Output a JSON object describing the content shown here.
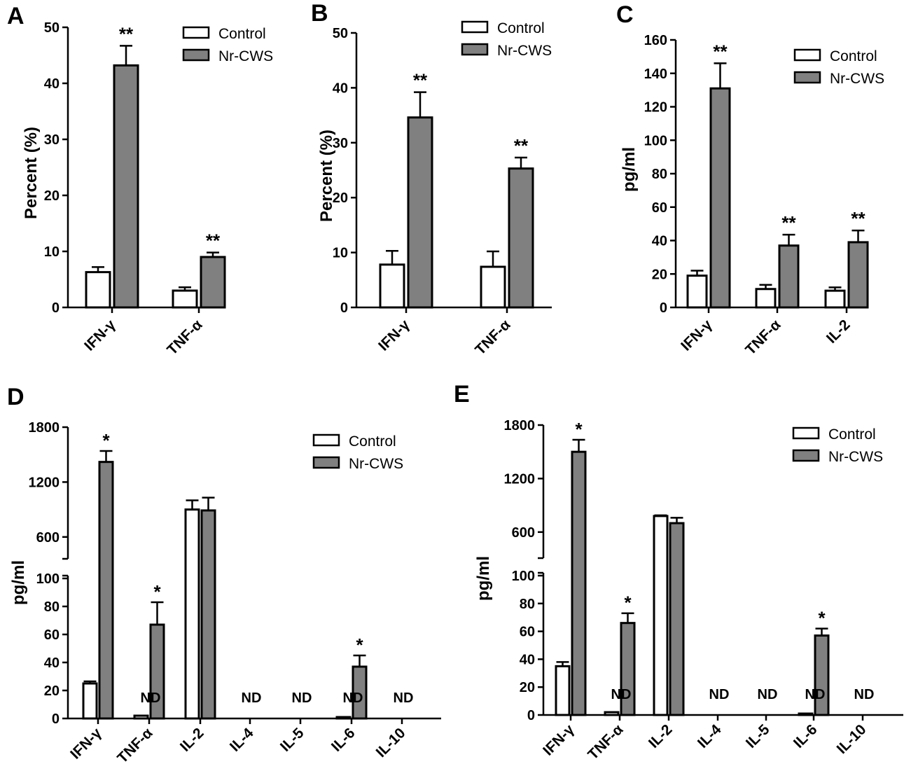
{
  "legend": {
    "control": "Control",
    "treatment": "Nr-CWS"
  },
  "colors": {
    "control": "#ffffff",
    "treatment": "#808080",
    "stroke": "#000000"
  },
  "chart_data": [
    {
      "panel": "A",
      "type": "bar",
      "broken_axis": false,
      "ylabel": "Percent (%)",
      "ylim": [
        0,
        50
      ],
      "yticks": [
        0,
        10,
        20,
        30,
        40,
        50
      ],
      "categories": [
        "IFN-γ",
        "TNF-α"
      ],
      "series": [
        {
          "name": "Control",
          "values": [
            6.3,
            3.0
          ],
          "errors": [
            0.9,
            0.6
          ]
        },
        {
          "name": "Nr-CWS",
          "values": [
            43.2,
            9.0
          ],
          "errors": [
            3.5,
            0.8
          ]
        }
      ],
      "annotations": [
        "**",
        "**"
      ],
      "legend_position": "top-right"
    },
    {
      "panel": "B",
      "type": "bar",
      "broken_axis": false,
      "ylabel": "Percent (%)",
      "ylim": [
        0,
        50
      ],
      "yticks": [
        0,
        10,
        20,
        30,
        40,
        50
      ],
      "categories": [
        "IFN-γ",
        "TNF-α"
      ],
      "series": [
        {
          "name": "Control",
          "values": [
            7.8,
            7.4
          ],
          "errors": [
            2.5,
            2.8
          ]
        },
        {
          "name": "Nr-CWS",
          "values": [
            34.6,
            25.3
          ],
          "errors": [
            4.6,
            2.0
          ]
        }
      ],
      "annotations": [
        "**",
        "**"
      ],
      "legend_position": "top-right"
    },
    {
      "panel": "C",
      "type": "bar",
      "broken_axis": false,
      "ylabel": "pg/ml",
      "ylim": [
        0,
        160
      ],
      "yticks": [
        0,
        20,
        40,
        60,
        80,
        100,
        120,
        140,
        160
      ],
      "categories": [
        "IFN-γ",
        "TNF-α",
        "IL-2"
      ],
      "series": [
        {
          "name": "Control",
          "values": [
            19,
            11,
            10
          ],
          "errors": [
            3,
            2.5,
            2
          ]
        },
        {
          "name": "Nr-CWS",
          "values": [
            131,
            37,
            39
          ],
          "errors": [
            15,
            6.5,
            7
          ]
        }
      ],
      "annotations": [
        "**",
        "**",
        "**"
      ],
      "legend_position": "top-right"
    },
    {
      "panel": "D",
      "type": "bar",
      "broken_axis": true,
      "ylabel": "pg/ml",
      "lower_ylim": [
        0,
        100
      ],
      "lower_yticks": [
        0,
        20,
        40,
        60,
        80,
        100
      ],
      "upper_ylim": [
        300,
        1800
      ],
      "upper_yticks": [
        600,
        1200,
        1800
      ],
      "categories": [
        "IFN-γ",
        "TNF-α",
        "IL-2",
        "IL-4",
        "IL-5",
        "IL-6",
        "IL-10"
      ],
      "series": [
        {
          "name": "Control",
          "values": [
            25,
            2,
            900,
            0,
            0,
            1,
            0
          ],
          "errors": [
            1.5,
            0,
            100,
            0,
            0,
            0,
            0
          ]
        },
        {
          "name": "Nr-CWS",
          "values": [
            1420,
            67,
            890,
            0,
            0,
            37,
            0
          ],
          "errors": [
            120,
            16,
            140,
            0,
            0,
            8,
            0
          ]
        }
      ],
      "annotations": [
        "*",
        "*",
        "",
        "",
        "",
        "*",
        ""
      ],
      "nd_labels": [
        "",
        "ND",
        "",
        "ND",
        "ND",
        "ND",
        "ND"
      ],
      "legend_position": "top-right"
    },
    {
      "panel": "E",
      "type": "bar",
      "broken_axis": true,
      "ylabel": "pg/ml",
      "lower_ylim": [
        0,
        100
      ],
      "lower_yticks": [
        0,
        20,
        40,
        60,
        80,
        100
      ],
      "upper_ylim": [
        300,
        1800
      ],
      "upper_yticks": [
        600,
        1200,
        1800
      ],
      "categories": [
        "IFN-γ",
        "TNF-α",
        "IL-2",
        "IL-4",
        "IL-5",
        "IL-6",
        "IL-10"
      ],
      "series": [
        {
          "name": "Control",
          "values": [
            35,
            2,
            780,
            0,
            0,
            1,
            0
          ],
          "errors": [
            3,
            0,
            8,
            0,
            0,
            0,
            0
          ]
        },
        {
          "name": "Nr-CWS",
          "values": [
            1500,
            66,
            700,
            0,
            0,
            57,
            0
          ],
          "errors": [
            135,
            7,
            60,
            0,
            0,
            5,
            0
          ]
        }
      ],
      "annotations": [
        "*",
        "*",
        "",
        "",
        "",
        "*",
        ""
      ],
      "nd_labels": [
        "",
        "ND",
        "",
        "ND",
        "ND",
        "ND",
        "ND"
      ],
      "legend_position": "top-right"
    }
  ]
}
